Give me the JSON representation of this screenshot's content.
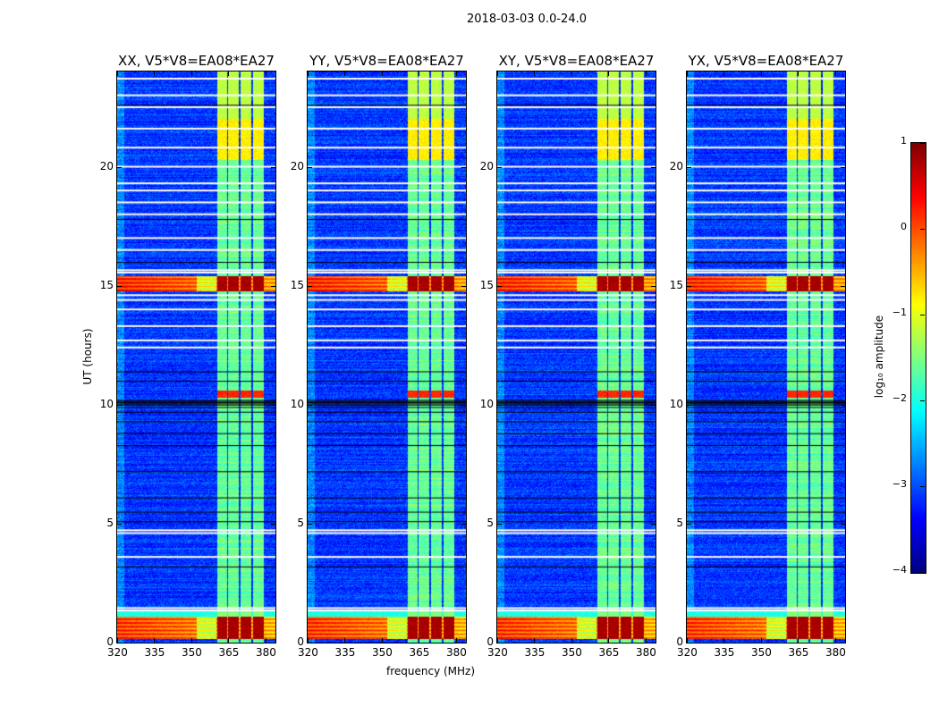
{
  "chart_data": {
    "type": "heatmap",
    "title": "2018-03-03 0.0-24.0",
    "xlabel": "frequency (MHz)",
    "ylabel": "UT (hours)",
    "xlim": [
      320,
      384
    ],
    "ylim": [
      0,
      24
    ],
    "xticks": [
      320,
      335,
      350,
      365,
      380
    ],
    "yticks": [
      0,
      5,
      10,
      15,
      20
    ],
    "panels": [
      {
        "title": "XX, V5*V8=EA08*EA27"
      },
      {
        "title": "YY, V5*V8=EA08*EA27"
      },
      {
        "title": "XY, V5*V8=EA08*EA27"
      },
      {
        "title": "YX, V5*V8=EA08*EA27"
      }
    ],
    "colorbar": {
      "label": "log₁₀ amplitude",
      "range": [
        -4,
        1
      ],
      "ticks": [
        "1",
        "0",
        "−1",
        "−2",
        "−3",
        "−4"
      ],
      "colormap": "jet"
    },
    "background_level": -3.1,
    "rfi_channels_mhz": [
      [
        360.5,
        364.3
      ],
      [
        364.9,
        369.3
      ],
      [
        369.9,
        374.3
      ],
      [
        374.9,
        379.2
      ]
    ],
    "rfi_level": -1.6,
    "bright_bands": [
      {
        "hours": [
          0.15,
          1.1
        ],
        "level": 0.1,
        "rfi_level": 0.8
      },
      {
        "hours": [
          1.1,
          1.3
        ],
        "level": -2.0,
        "rfi_level": -1.5
      },
      {
        "hours": [
          14.75,
          15.4
        ],
        "level": 0.2,
        "rfi_level": 0.8
      },
      {
        "hours": [
          10.3,
          10.6
        ],
        "level": -3.0,
        "rfi_level": 0.2
      },
      {
        "hours": [
          20.3,
          22.0
        ],
        "level": -3.0,
        "rfi_level": -0.8
      },
      {
        "hours": [
          22.0,
          24.0
        ],
        "level": -3.0,
        "rfi_level": -1.2
      }
    ],
    "flagged_hours_white": [
      1.35,
      1.45,
      3.6,
      4.6,
      4.72,
      12.4,
      12.7,
      13.3,
      14.0,
      14.4,
      14.6,
      15.55,
      15.65,
      16.5,
      17.0,
      18.0,
      18.5,
      19.0,
      19.3,
      20.0,
      20.8,
      21.6,
      22.5,
      23.0,
      23.7
    ],
    "zero_hours_black": [
      3.2,
      5.1,
      5.5,
      6.1,
      7.2,
      8.3,
      8.8,
      9.3,
      9.7,
      9.9,
      10.0,
      10.05,
      10.1,
      10.15,
      10.2,
      11.0,
      11.4,
      16.0,
      17.8,
      22.6
    ]
  }
}
